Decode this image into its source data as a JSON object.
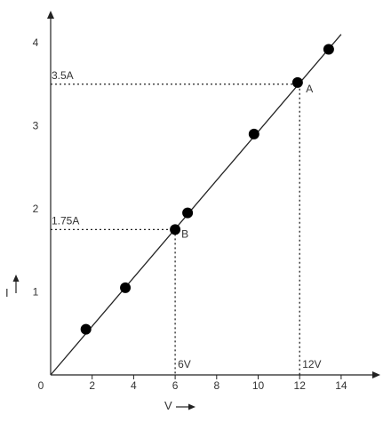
{
  "chart_data": {
    "type": "scatter",
    "title": "",
    "xlabel": "V",
    "ylabel": "I",
    "xlim": [
      0,
      15
    ],
    "ylim": [
      0,
      4.3
    ],
    "x_ticks": [
      0,
      2,
      4,
      6,
      8,
      10,
      12,
      14
    ],
    "y_ticks": [
      1,
      2,
      3,
      4
    ],
    "grid": false,
    "series": [
      {
        "points": [
          {
            "x": 1.7,
            "y": 0.55
          },
          {
            "x": 3.6,
            "y": 1.05
          },
          {
            "x": 6.0,
            "y": 1.75
          },
          {
            "x": 6.6,
            "y": 1.95
          },
          {
            "x": 9.8,
            "y": 2.9
          },
          {
            "x": 11.9,
            "y": 3.52
          },
          {
            "x": 13.4,
            "y": 3.92
          }
        ]
      }
    ],
    "fit_line": {
      "x1": 0,
      "y1": 0,
      "x2": 14,
      "y2": 4.1
    },
    "annotations": [
      {
        "point": "A",
        "x": 12,
        "y": 3.5,
        "x_label": "12V",
        "y_label": "3.5A"
      },
      {
        "point": "B",
        "x": 6,
        "y": 1.75,
        "x_label": "6V",
        "y_label": "1.75A"
      }
    ]
  }
}
